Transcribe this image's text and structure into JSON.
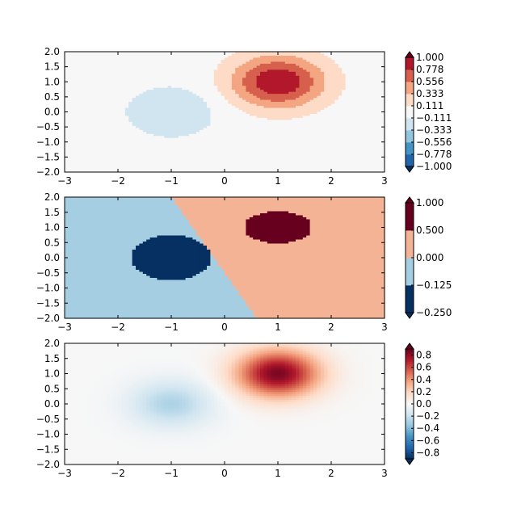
{
  "chart_data": [
    {
      "type": "heatmap",
      "style": "discrete-levels",
      "title": "",
      "xlabel": "",
      "ylabel": "",
      "xlim": [
        -3,
        3
      ],
      "ylim": [
        -2,
        2
      ],
      "xticks": [
        "−3",
        "−2",
        "−1",
        "0",
        "1",
        "2",
        "3"
      ],
      "yticks": [
        "2.0",
        "1.5",
        "1.0",
        "0.5",
        "0.0",
        "−0.5",
        "−1.0",
        "−1.5",
        "−2.0"
      ],
      "grid": false,
      "colorbar": {
        "extend": "both",
        "ticks": [
          "1.000",
          "0.778",
          "0.556",
          "0.333",
          "0.111",
          "−0.111",
          "−0.333",
          "−0.556",
          "−0.778",
          "−1.000"
        ],
        "boundaries": [
          -1.0,
          -0.778,
          -0.556,
          -0.333,
          -0.111,
          0.111,
          0.333,
          0.556,
          0.778,
          1.0
        ],
        "colors": [
          "#2166ac",
          "#4393c3",
          "#92c5de",
          "#d1e5f0",
          "#f7f7f7",
          "#fddbc7",
          "#f4a582",
          "#d6604d",
          "#b2182b"
        ],
        "under_color": "#053061",
        "over_color": "#67001f"
      }
    },
    {
      "type": "heatmap",
      "style": "discrete-levels",
      "title": "",
      "xlabel": "",
      "ylabel": "",
      "xlim": [
        -3,
        3
      ],
      "ylim": [
        -2,
        2
      ],
      "xticks": [
        "−3",
        "−2",
        "−1",
        "0",
        "1",
        "2",
        "3"
      ],
      "yticks": [
        "2.0",
        "1.5",
        "1.0",
        "0.5",
        "0.0",
        "−0.5",
        "−1.0",
        "−1.5",
        "−2.0"
      ],
      "grid": false,
      "colorbar": {
        "extend": "both",
        "ticks": [
          "1.000",
          "0.500",
          "0.000",
          "−0.125",
          "−0.250"
        ],
        "boundaries": [
          -0.25,
          -0.125,
          0.0,
          0.5,
          1.0
        ],
        "colors": [
          "#053061",
          "#a6cee3",
          "#f5b396",
          "#67001f"
        ],
        "under_color": "#053061",
        "over_color": "#67001f"
      }
    },
    {
      "type": "heatmap",
      "style": "continuous",
      "title": "",
      "xlabel": "",
      "ylabel": "",
      "xlim": [
        -3,
        3
      ],
      "ylim": [
        -2,
        2
      ],
      "xticks": [
        "−3",
        "−2",
        "−1",
        "0",
        "1",
        "2",
        "3"
      ],
      "yticks": [
        "2.0",
        "1.5",
        "1.0",
        "0.5",
        "0.0",
        "−0.5",
        "−1.0",
        "−1.5",
        "−2.0"
      ],
      "grid": false,
      "colorbar": {
        "extend": "both",
        "ticks": [
          "0.8",
          "0.6",
          "0.4",
          "0.2",
          "0.0",
          "−0.2",
          "−0.4",
          "−0.6",
          "−0.8"
        ],
        "range": [
          -0.9,
          0.9
        ],
        "under_color": "#053061",
        "over_color": "#67001f"
      }
    }
  ],
  "colors": {
    "rdbu_stops": [
      "#053061",
      "#2166ac",
      "#4393c3",
      "#92c5de",
      "#d1e5f0",
      "#f7f7f7",
      "#fddbc7",
      "#f4a582",
      "#d6604d",
      "#b2182b",
      "#67001f"
    ]
  }
}
